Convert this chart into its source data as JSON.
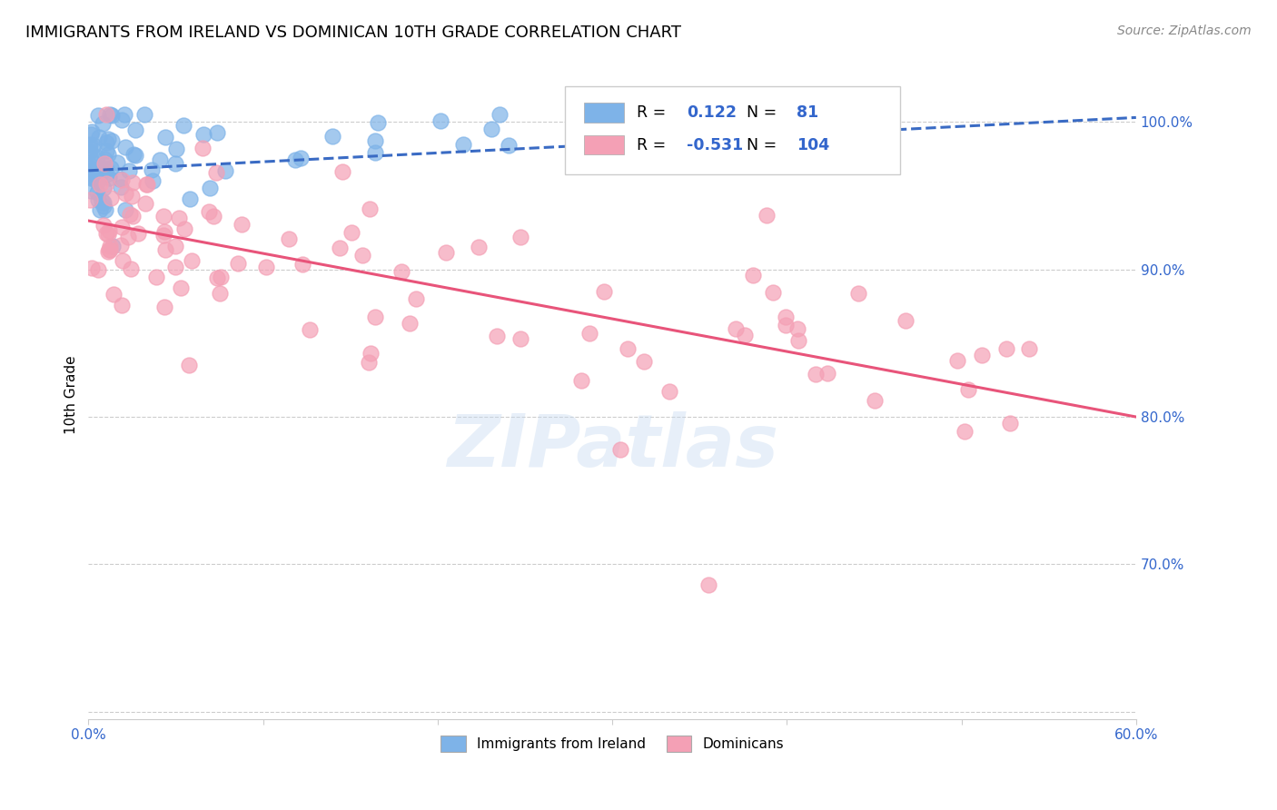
{
  "title": "IMMIGRANTS FROM IRELAND VS DOMINICAN 10TH GRADE CORRELATION CHART",
  "source": "Source: ZipAtlas.com",
  "ylabel": "10th Grade",
  "xlim": [
    0.0,
    0.6
  ],
  "ylim": [
    0.595,
    1.035
  ],
  "ireland_R": 0.122,
  "ireland_N": 81,
  "dominican_R": -0.531,
  "dominican_N": 104,
  "ireland_color": "#7EB3E8",
  "dominican_color": "#F4A0B5",
  "ireland_line_color": "#3A6BC4",
  "dominican_line_color": "#E8547A",
  "watermark": "ZIPatlas",
  "title_fontsize": 13,
  "axis_label_fontsize": 11,
  "tick_label_fontsize": 11,
  "source_fontsize": 10,
  "ireland_line_x0": 0.0,
  "ireland_line_y0": 0.967,
  "ireland_line_x1": 0.6,
  "ireland_line_y1": 1.003,
  "dominican_line_x0": 0.0,
  "dominican_line_y0": 0.933,
  "dominican_line_x1": 0.6,
  "dominican_line_y1": 0.8
}
